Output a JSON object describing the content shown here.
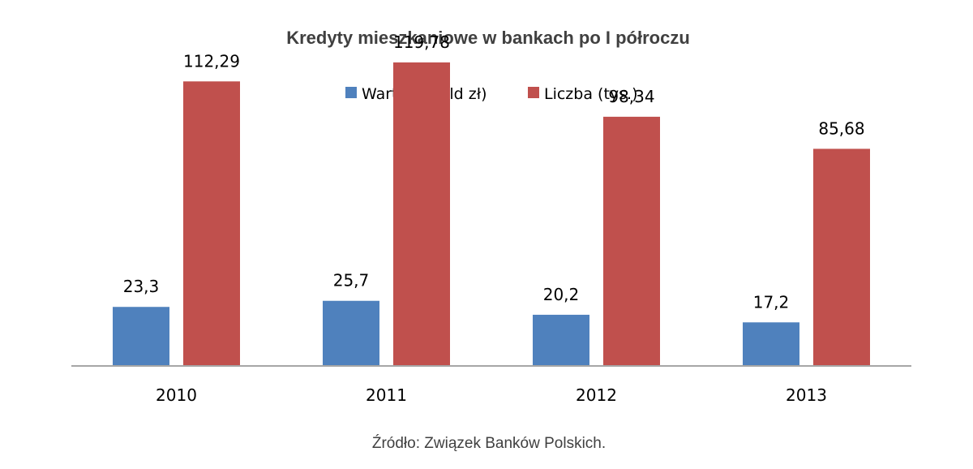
{
  "chart_data": {
    "type": "bar",
    "title": "Kredyty mieszkaniowe w bankach po I półroczu",
    "categories": [
      "2010",
      "2011",
      "2012",
      "2013"
    ],
    "series": [
      {
        "name": "Wartość (mld zł)",
        "values": [
          23.3,
          25.7,
          20.2,
          17.2
        ],
        "labels": [
          "23,3",
          "25,7",
          "20,2",
          "17,2"
        ],
        "color": "#4f81bd"
      },
      {
        "name": "Liczba (tys.)",
        "values": [
          112.29,
          119.78,
          98.34,
          85.68
        ],
        "labels": [
          "112,29",
          "119,78",
          "98,34",
          "85,68"
        ],
        "color": "#c0504d"
      }
    ],
    "ylim": [
      0,
      130
    ],
    "grid": false,
    "legend_position": "top",
    "source": "Źródło: Związek Banków Polskich."
  }
}
